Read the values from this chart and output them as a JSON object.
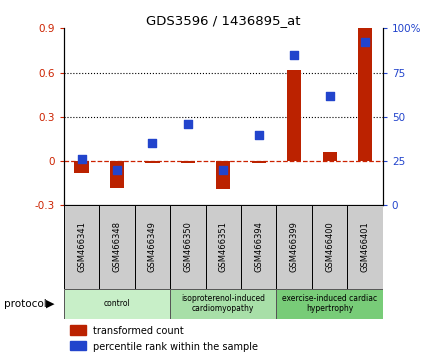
{
  "title": "GDS3596 / 1436895_at",
  "samples": [
    "GSM466341",
    "GSM466348",
    "GSM466349",
    "GSM466350",
    "GSM466351",
    "GSM466394",
    "GSM466399",
    "GSM466400",
    "GSM466401"
  ],
  "transformed_count": [
    -0.08,
    -0.18,
    -0.01,
    -0.01,
    -0.19,
    -0.01,
    0.62,
    0.06,
    0.9
  ],
  "percentile_rank": [
    26,
    20,
    35,
    46,
    20,
    40,
    85,
    62,
    92
  ],
  "ylim_left": [
    -0.3,
    0.9
  ],
  "ylim_right": [
    0,
    100
  ],
  "yticks_left": [
    -0.3,
    0.0,
    0.3,
    0.6,
    0.9
  ],
  "yticks_right": [
    0,
    25,
    50,
    75,
    100
  ],
  "ytick_labels_left": [
    "-0.3",
    "0",
    "0.3",
    "0.6",
    "0.9"
  ],
  "ytick_labels_right": [
    "0",
    "25",
    "50",
    "75",
    "100%"
  ],
  "hlines": [
    0.3,
    0.6
  ],
  "groups": [
    {
      "label": "control",
      "start": 0,
      "end": 3,
      "color": "#c8efc8"
    },
    {
      "label": "isoproterenol-induced\ncardiomyopathy",
      "start": 3,
      "end": 6,
      "color": "#a8dfa8"
    },
    {
      "label": "exercise-induced cardiac\nhypertrophy",
      "start": 6,
      "end": 9,
      "color": "#78cc78"
    }
  ],
  "bar_color": "#bb2200",
  "dot_color": "#2244cc",
  "bar_width": 0.4,
  "dot_size": 28,
  "background_color": "#ffffff",
  "plot_bg_color": "#ffffff",
  "tick_label_color_left": "#cc2200",
  "tick_label_color_right": "#2244cc",
  "zero_line_color": "#cc2200",
  "zero_line_style": "--",
  "grid_color": "#000000",
  "grid_style": ":"
}
